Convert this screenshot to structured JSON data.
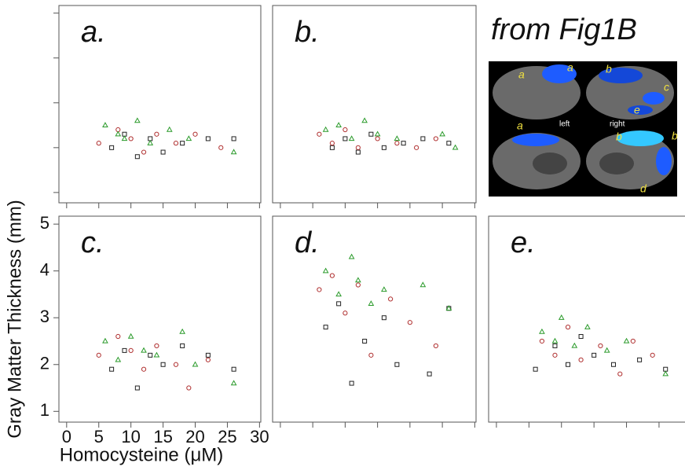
{
  "axes": {
    "x": {
      "label": "Homocysteine (μM)",
      "lim": [
        -1.2,
        30.2
      ],
      "ticks": [
        0,
        5,
        10,
        15,
        20,
        25,
        30
      ]
    },
    "y": {
      "label": "Gray Matter Thickness (mm)",
      "lim": [
        0.77,
        5.17
      ],
      "ticks": [
        1,
        2,
        3,
        4,
        5
      ]
    }
  },
  "inset": {
    "title": "from Fig1B",
    "labels": [
      "a",
      "a",
      "b",
      "c",
      "e",
      "left",
      "right",
      "a",
      "b",
      "b",
      "d"
    ]
  },
  "chart_data": [
    {
      "type": "scatter",
      "title": "a.",
      "series": [
        {
          "color": "#222222",
          "marker": "square",
          "x": [
            7,
            9,
            11,
            13,
            15,
            18,
            22,
            26
          ],
          "values": [
            2.0,
            2.3,
            1.8,
            2.2,
            1.9,
            2.1,
            2.2,
            2.2
          ]
        },
        {
          "color": "#b03030",
          "marker": "circle",
          "x": [
            5,
            8,
            10,
            12,
            14,
            17,
            20,
            24
          ],
          "values": [
            2.1,
            2.4,
            2.2,
            1.9,
            2.3,
            2.1,
            2.3,
            2.0
          ]
        },
        {
          "color": "#2a9a2a",
          "marker": "triangle",
          "x": [
            6,
            8,
            9,
            11,
            13,
            16,
            19,
            26
          ],
          "values": [
            2.5,
            2.3,
            2.2,
            2.6,
            2.1,
            2.4,
            2.2,
            1.9
          ]
        }
      ]
    },
    {
      "type": "scatter",
      "title": "b.",
      "series": [
        {
          "color": "#222222",
          "marker": "square",
          "x": [
            8,
            10,
            12,
            14,
            16,
            19,
            22,
            26
          ],
          "values": [
            2.0,
            2.2,
            1.9,
            2.3,
            2.0,
            2.1,
            2.2,
            2.1
          ]
        },
        {
          "color": "#b03030",
          "marker": "circle",
          "x": [
            6,
            8,
            10,
            12,
            15,
            18,
            21,
            24
          ],
          "values": [
            2.3,
            2.1,
            2.4,
            2.0,
            2.2,
            2.1,
            2.0,
            2.2
          ]
        },
        {
          "color": "#2a9a2a",
          "marker": "triangle",
          "x": [
            7,
            9,
            11,
            13,
            15,
            18,
            25,
            27
          ],
          "values": [
            2.4,
            2.5,
            2.2,
            2.6,
            2.3,
            2.2,
            2.3,
            2.0
          ]
        }
      ]
    },
    {
      "type": "scatter",
      "title": "c.",
      "series": [
        {
          "color": "#222222",
          "marker": "square",
          "x": [
            7,
            9,
            11,
            13,
            15,
            18,
            22,
            26
          ],
          "values": [
            1.9,
            2.3,
            1.5,
            2.2,
            2.0,
            2.4,
            2.2,
            1.9
          ]
        },
        {
          "color": "#b03030",
          "marker": "circle",
          "x": [
            5,
            8,
            10,
            12,
            14,
            17,
            19,
            22
          ],
          "values": [
            2.2,
            2.6,
            2.3,
            1.9,
            2.4,
            2.0,
            1.5,
            2.1
          ]
        },
        {
          "color": "#2a9a2a",
          "marker": "triangle",
          "x": [
            6,
            8,
            10,
            12,
            14,
            18,
            20,
            26
          ],
          "values": [
            2.5,
            2.1,
            2.6,
            2.3,
            2.2,
            2.7,
            2.0,
            1.6
          ]
        }
      ]
    },
    {
      "type": "scatter",
      "title": "d.",
      "series": [
        {
          "color": "#222222",
          "marker": "square",
          "x": [
            7,
            9,
            11,
            13,
            16,
            18,
            23,
            26
          ],
          "values": [
            2.8,
            3.3,
            1.6,
            2.5,
            3.0,
            2.0,
            1.8,
            3.2
          ]
        },
        {
          "color": "#b03030",
          "marker": "circle",
          "x": [
            6,
            8,
            10,
            12,
            14,
            17,
            20,
            24
          ],
          "values": [
            3.6,
            3.9,
            3.1,
            3.7,
            2.2,
            3.4,
            2.9,
            2.4
          ]
        },
        {
          "color": "#2a9a2a",
          "marker": "triangle",
          "x": [
            7,
            9,
            11,
            12,
            14,
            16,
            22,
            26
          ],
          "values": [
            4.0,
            3.5,
            4.3,
            3.8,
            3.3,
            3.6,
            3.7,
            3.2
          ]
        }
      ]
    },
    {
      "type": "scatter",
      "title": "e.",
      "series": [
        {
          "color": "#222222",
          "marker": "square",
          "x": [
            6,
            9,
            11,
            13,
            15,
            18,
            22,
            26
          ],
          "values": [
            1.9,
            2.4,
            2.0,
            2.6,
            2.2,
            2.0,
            2.1,
            1.9
          ]
        },
        {
          "color": "#b03030",
          "marker": "circle",
          "x": [
            7,
            9,
            11,
            13,
            16,
            19,
            21,
            24
          ],
          "values": [
            2.5,
            2.2,
            2.8,
            2.1,
            2.4,
            1.8,
            2.5,
            2.2
          ]
        },
        {
          "color": "#2a9a2a",
          "marker": "triangle",
          "x": [
            7,
            9,
            10,
            12,
            14,
            17,
            20,
            26
          ],
          "values": [
            2.7,
            2.5,
            3.0,
            2.4,
            2.8,
            2.3,
            2.5,
            1.8
          ]
        }
      ]
    }
  ]
}
